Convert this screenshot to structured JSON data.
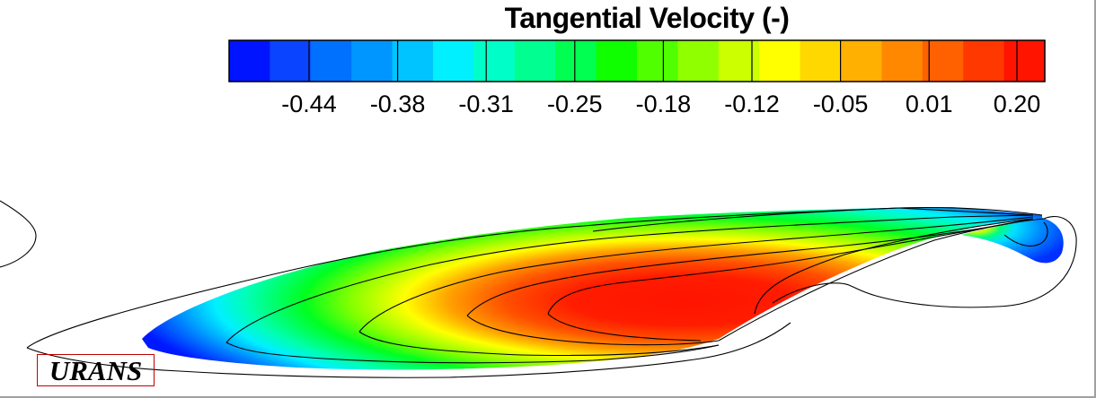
{
  "chart_data": {
    "type": "heatmap",
    "title": "Tangential Velocity (-)",
    "colorbar": {
      "levels": 10,
      "tick_labels": [
        "-0.44",
        "-0.38",
        "-0.31",
        "-0.25",
        "-0.18",
        "-0.12",
        "-0.05",
        "0.01",
        "0.20"
      ],
      "tick_values": [
        -0.44,
        -0.38,
        -0.31,
        -0.25,
        -0.18,
        -0.12,
        -0.05,
        0.01,
        0.2
      ],
      "colors": [
        "#0014ff",
        "#0a44ff",
        "#0070ff",
        "#0096ff",
        "#00c4ff",
        "#00f0ff",
        "#00ffc8",
        "#00ff90",
        "#00ff50",
        "#10ff00",
        "#50ff00",
        "#90ff00",
        "#ccff00",
        "#ffff00",
        "#ffd800",
        "#ffb000",
        "#ff8800",
        "#ff6000",
        "#ff3800",
        "#ff1400"
      ],
      "colormap": "jet"
    },
    "annotation": "URANS",
    "colors": {
      "label_box_border": "#c00000",
      "frame_border": "#a0a0a0"
    }
  }
}
